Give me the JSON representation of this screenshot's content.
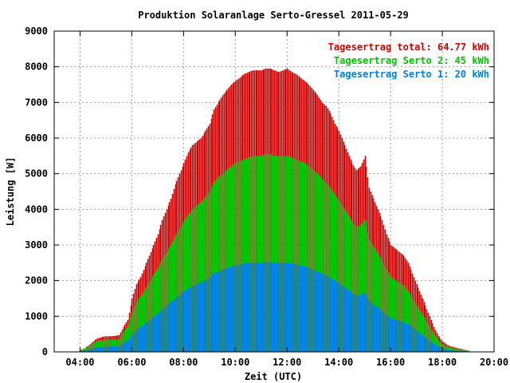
{
  "chart_data": {
    "type": "bar",
    "title": "Produktion Solaranlage Serto-Gressel 2011-05-29",
    "xlabel": "Zeit (UTC)",
    "ylabel": "Leistung [W]",
    "xlim": [
      "03:00",
      "20:00"
    ],
    "ylim": [
      0,
      9000
    ],
    "x_ticks": [
      "04:00",
      "06:00",
      "08:00",
      "10:00",
      "12:00",
      "14:00",
      "16:00",
      "18:00",
      "20:00"
    ],
    "y_ticks": [
      "0",
      "1000",
      "2000",
      "3000",
      "4000",
      "5000",
      "6000",
      "7000",
      "8000",
      "9000"
    ],
    "grid": true,
    "legend_position": "top-right",
    "stacked": true,
    "colors": {
      "total": "#d00000",
      "serto2": "#00c000",
      "serto1": "#0080e0",
      "grid": "#a0a0a0"
    },
    "series": [
      {
        "name": "Tagesertrag total: 64.77 kWh",
        "color": "#d00000",
        "points": [
          [
            "04:00",
            50
          ],
          [
            "04:10",
            100
          ],
          [
            "04:20",
            180
          ],
          [
            "04:30",
            300
          ],
          [
            "04:40",
            380
          ],
          [
            "04:50",
            420
          ],
          [
            "05:00",
            440
          ],
          [
            "05:10",
            440
          ],
          [
            "05:20",
            450
          ],
          [
            "05:30",
            470
          ],
          [
            "05:40",
            700
          ],
          [
            "05:50",
            900
          ],
          [
            "06:00",
            1500
          ],
          [
            "06:10",
            1900
          ],
          [
            "06:20",
            2100
          ],
          [
            "06:30",
            2400
          ],
          [
            "06:40",
            2700
          ],
          [
            "06:50",
            3000
          ],
          [
            "07:00",
            3300
          ],
          [
            "07:10",
            3700
          ],
          [
            "07:20",
            4000
          ],
          [
            "07:30",
            4300
          ],
          [
            "07:40",
            4700
          ],
          [
            "07:50",
            5000
          ],
          [
            "08:00",
            5300
          ],
          [
            "08:10",
            5600
          ],
          [
            "08:20",
            5800
          ],
          [
            "08:30",
            5900
          ],
          [
            "08:40",
            6000
          ],
          [
            "08:50",
            6200
          ],
          [
            "09:00",
            6400
          ],
          [
            "09:10",
            6800
          ],
          [
            "09:20",
            7000
          ],
          [
            "09:30",
            7200
          ],
          [
            "09:40",
            7350
          ],
          [
            "09:50",
            7500
          ],
          [
            "10:00",
            7600
          ],
          [
            "10:10",
            7700
          ],
          [
            "10:20",
            7800
          ],
          [
            "10:30",
            7850
          ],
          [
            "10:40",
            7900
          ],
          [
            "10:50",
            7900
          ],
          [
            "11:00",
            7900
          ],
          [
            "11:10",
            7950
          ],
          [
            "11:20",
            7950
          ],
          [
            "11:30",
            7900
          ],
          [
            "11:40",
            7850
          ],
          [
            "11:50",
            7900
          ],
          [
            "12:00",
            7950
          ],
          [
            "12:10",
            7850
          ],
          [
            "12:20",
            7800
          ],
          [
            "12:30",
            7700
          ],
          [
            "12:40",
            7600
          ],
          [
            "12:50",
            7500
          ],
          [
            "13:00",
            7350
          ],
          [
            "13:10",
            7200
          ],
          [
            "13:20",
            7000
          ],
          [
            "13:30",
            6900
          ],
          [
            "13:40",
            6700
          ],
          [
            "13:50",
            6400
          ],
          [
            "14:00",
            6200
          ],
          [
            "14:10",
            5900
          ],
          [
            "14:20",
            5600
          ],
          [
            "14:30",
            5300
          ],
          [
            "14:40",
            5100
          ],
          [
            "14:50",
            5200
          ],
          [
            "15:00",
            5500
          ],
          [
            "15:10",
            4600
          ],
          [
            "15:20",
            4300
          ],
          [
            "15:30",
            4000
          ],
          [
            "15:40",
            3700
          ],
          [
            "15:50",
            3300
          ],
          [
            "16:00",
            3000
          ],
          [
            "16:10",
            2900
          ],
          [
            "16:20",
            2800
          ],
          [
            "16:30",
            2700
          ],
          [
            "16:40",
            2500
          ],
          [
            "16:50",
            2200
          ],
          [
            "17:00",
            1900
          ],
          [
            "17:10",
            1600
          ],
          [
            "17:20",
            1300
          ],
          [
            "17:30",
            1000
          ],
          [
            "17:40",
            700
          ],
          [
            "17:50",
            450
          ],
          [
            "18:00",
            300
          ],
          [
            "18:10",
            200
          ],
          [
            "18:20",
            150
          ],
          [
            "18:30",
            120
          ],
          [
            "18:40",
            90
          ],
          [
            "18:50",
            60
          ],
          [
            "19:00",
            30
          ]
        ]
      },
      {
        "name": "Tagesertrag Serto 2: 45 kWh",
        "color": "#00c000",
        "points": [
          [
            "04:00",
            40
          ],
          [
            "04:10",
            90
          ],
          [
            "04:20",
            150
          ],
          [
            "04:30",
            250
          ],
          [
            "04:40",
            300
          ],
          [
            "04:50",
            320
          ],
          [
            "05:00",
            340
          ],
          [
            "05:10",
            340
          ],
          [
            "05:20",
            350
          ],
          [
            "05:30",
            360
          ],
          [
            "05:40",
            550
          ],
          [
            "05:50",
            700
          ],
          [
            "06:00",
            1100
          ],
          [
            "06:10",
            1400
          ],
          [
            "06:20",
            1550
          ],
          [
            "06:30",
            1750
          ],
          [
            "06:40",
            1950
          ],
          [
            "06:50",
            2150
          ],
          [
            "07:00",
            2350
          ],
          [
            "07:10",
            2600
          ],
          [
            "07:20",
            2800
          ],
          [
            "07:30",
            3000
          ],
          [
            "07:40",
            3250
          ],
          [
            "07:50",
            3450
          ],
          [
            "08:00",
            3650
          ],
          [
            "08:10",
            3850
          ],
          [
            "08:20",
            4000
          ],
          [
            "08:30",
            4100
          ],
          [
            "08:40",
            4200
          ],
          [
            "08:50",
            4350
          ],
          [
            "09:00",
            4500
          ],
          [
            "09:10",
            4750
          ],
          [
            "09:20",
            4900
          ],
          [
            "09:30",
            5000
          ],
          [
            "09:40",
            5100
          ],
          [
            "09:50",
            5200
          ],
          [
            "10:00",
            5300
          ],
          [
            "10:10",
            5350
          ],
          [
            "10:20",
            5400
          ],
          [
            "10:30",
            5450
          ],
          [
            "10:40",
            5500
          ],
          [
            "10:50",
            5500
          ],
          [
            "11:00",
            5500
          ],
          [
            "11:10",
            5550
          ],
          [
            "11:20",
            5550
          ],
          [
            "11:30",
            5500
          ],
          [
            "11:40",
            5500
          ],
          [
            "11:50",
            5500
          ],
          [
            "12:00",
            5500
          ],
          [
            "12:10",
            5450
          ],
          [
            "12:20",
            5400
          ],
          [
            "12:30",
            5350
          ],
          [
            "12:40",
            5300
          ],
          [
            "12:50",
            5200
          ],
          [
            "13:00",
            5100
          ],
          [
            "13:10",
            5000
          ],
          [
            "13:20",
            4850
          ],
          [
            "13:30",
            4750
          ],
          [
            "13:40",
            4600
          ],
          [
            "13:50",
            4400
          ],
          [
            "14:00",
            4250
          ],
          [
            "14:10",
            4050
          ],
          [
            "14:20",
            3850
          ],
          [
            "14:30",
            3650
          ],
          [
            "14:40",
            3500
          ],
          [
            "14:50",
            3550
          ],
          [
            "15:00",
            3700
          ],
          [
            "15:10",
            3150
          ],
          [
            "15:20",
            2950
          ],
          [
            "15:30",
            2750
          ],
          [
            "15:40",
            2550
          ],
          [
            "15:50",
            2300
          ],
          [
            "16:00",
            2100
          ],
          [
            "16:10",
            2000
          ],
          [
            "16:20",
            1950
          ],
          [
            "16:30",
            1850
          ],
          [
            "16:40",
            1700
          ],
          [
            "16:50",
            1500
          ],
          [
            "17:00",
            1300
          ],
          [
            "17:10",
            1100
          ],
          [
            "17:20",
            900
          ],
          [
            "17:30",
            700
          ],
          [
            "17:40",
            500
          ],
          [
            "17:50",
            320
          ],
          [
            "18:00",
            220
          ],
          [
            "18:10",
            150
          ],
          [
            "18:20",
            110
          ],
          [
            "18:30",
            90
          ],
          [
            "18:40",
            70
          ],
          [
            "18:50",
            45
          ],
          [
            "19:00",
            20
          ]
        ]
      },
      {
        "name": "Tagesertrag Serto 1: 20 kWh",
        "color": "#0080e0",
        "points": [
          [
            "04:00",
            20
          ],
          [
            "04:10",
            40
          ],
          [
            "04:20",
            70
          ],
          [
            "04:30",
            110
          ],
          [
            "04:40",
            130
          ],
          [
            "04:50",
            140
          ],
          [
            "05:00",
            150
          ],
          [
            "05:10",
            150
          ],
          [
            "05:20",
            150
          ],
          [
            "05:30",
            160
          ],
          [
            "05:40",
            250
          ],
          [
            "05:50",
            320
          ],
          [
            "06:00",
            500
          ],
          [
            "06:10",
            620
          ],
          [
            "06:20",
            700
          ],
          [
            "06:30",
            800
          ],
          [
            "06:40",
            880
          ],
          [
            "06:50",
            980
          ],
          [
            "07:00",
            1080
          ],
          [
            "07:10",
            1200
          ],
          [
            "07:20",
            1300
          ],
          [
            "07:30",
            1400
          ],
          [
            "07:40",
            1500
          ],
          [
            "07:50",
            1600
          ],
          [
            "08:00",
            1700
          ],
          [
            "08:10",
            1780
          ],
          [
            "08:20",
            1850
          ],
          [
            "08:30",
            1900
          ],
          [
            "08:40",
            1950
          ],
          [
            "08:50",
            2000
          ],
          [
            "09:00",
            2100
          ],
          [
            "09:10",
            2200
          ],
          [
            "09:20",
            2250
          ],
          [
            "09:30",
            2300
          ],
          [
            "09:40",
            2350
          ],
          [
            "09:50",
            2400
          ],
          [
            "10:00",
            2420
          ],
          [
            "10:10",
            2450
          ],
          [
            "10:20",
            2480
          ],
          [
            "10:30",
            2500
          ],
          [
            "10:40",
            2500
          ],
          [
            "10:50",
            2500
          ],
          [
            "11:00",
            2500
          ],
          [
            "11:10",
            2520
          ],
          [
            "11:20",
            2520
          ],
          [
            "11:30",
            2500
          ],
          [
            "11:40",
            2500
          ],
          [
            "11:50",
            2500
          ],
          [
            "12:00",
            2500
          ],
          [
            "12:10",
            2480
          ],
          [
            "12:20",
            2460
          ],
          [
            "12:30",
            2430
          ],
          [
            "12:40",
            2400
          ],
          [
            "12:50",
            2350
          ],
          [
            "13:00",
            2300
          ],
          [
            "13:10",
            2250
          ],
          [
            "13:20",
            2200
          ],
          [
            "13:30",
            2150
          ],
          [
            "13:40",
            2080
          ],
          [
            "13:50",
            2000
          ],
          [
            "14:00",
            1930
          ],
          [
            "14:10",
            1840
          ],
          [
            "14:20",
            1750
          ],
          [
            "14:30",
            1650
          ],
          [
            "14:40",
            1580
          ],
          [
            "14:50",
            1600
          ],
          [
            "15:00",
            1650
          ],
          [
            "15:10",
            1420
          ],
          [
            "15:20",
            1330
          ],
          [
            "15:30",
            1240
          ],
          [
            "15:40",
            1150
          ],
          [
            "15:50",
            1040
          ],
          [
            "16:00",
            950
          ],
          [
            "16:10",
            900
          ],
          [
            "16:20",
            880
          ],
          [
            "16:30",
            840
          ],
          [
            "16:40",
            770
          ],
          [
            "16:50",
            680
          ],
          [
            "17:00",
            590
          ],
          [
            "17:10",
            500
          ],
          [
            "17:20",
            410
          ],
          [
            "17:30",
            320
          ],
          [
            "17:40",
            230
          ],
          [
            "17:50",
            150
          ],
          [
            "18:00",
            100
          ],
          [
            "18:10",
            70
          ],
          [
            "18:20",
            50
          ],
          [
            "18:30",
            40
          ],
          [
            "18:40",
            30
          ],
          [
            "18:50",
            20
          ],
          [
            "19:00",
            10
          ]
        ]
      }
    ]
  }
}
